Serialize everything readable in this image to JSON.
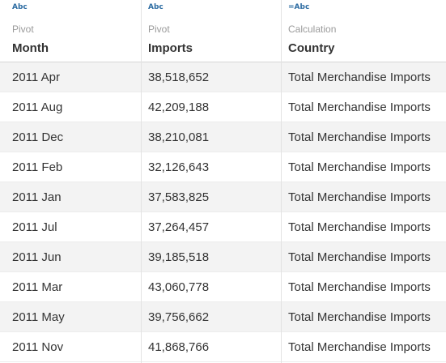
{
  "columns": [
    {
      "type_icon": "Abc",
      "role": "Pivot",
      "title": "Month"
    },
    {
      "type_icon": "Abc",
      "role": "Pivot",
      "title": "Imports"
    },
    {
      "type_icon": "=Abc",
      "role": "Calculation",
      "title": "Country"
    }
  ],
  "rows": [
    {
      "month": "2011 Apr",
      "imports": "38,518,652",
      "country": "Total Merchandise Imports"
    },
    {
      "month": "2011 Aug",
      "imports": "42,209,188",
      "country": "Total Merchandise Imports"
    },
    {
      "month": "2011 Dec",
      "imports": "38,210,081",
      "country": "Total Merchandise Imports"
    },
    {
      "month": "2011 Feb",
      "imports": "32,126,643",
      "country": "Total Merchandise Imports"
    },
    {
      "month": "2011 Jan",
      "imports": "37,583,825",
      "country": "Total Merchandise Imports"
    },
    {
      "month": "2011 Jul",
      "imports": "37,264,457",
      "country": "Total Merchandise Imports"
    },
    {
      "month": "2011 Jun",
      "imports": "39,185,518",
      "country": "Total Merchandise Imports"
    },
    {
      "month": "2011 Mar",
      "imports": "43,060,778",
      "country": "Total Merchandise Imports"
    },
    {
      "month": "2011 May",
      "imports": "39,756,662",
      "country": "Total Merchandise Imports"
    },
    {
      "month": "2011 Nov",
      "imports": "41,868,766",
      "country": "Total Merchandise Imports"
    }
  ]
}
